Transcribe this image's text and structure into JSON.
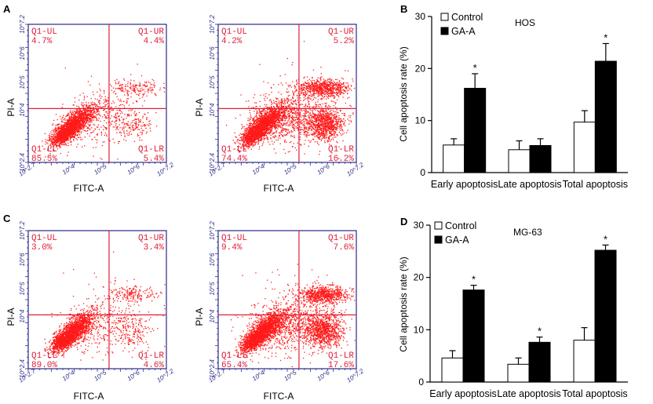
{
  "flow_panels": [
    {
      "letter": "A",
      "xlabel": "FITC-A",
      "ylabel": "PI-A",
      "plots": [
        {
          "quadrants": {
            "ul_name": "Q1-UL",
            "ul": "4.7%",
            "ur_name": "Q1-UR",
            "ur": "4.4%",
            "ll_name": "Q1-LL",
            "ll": "85.5%",
            "lr_name": "Q1-LR",
            "lr": "5.4%"
          },
          "density": "low"
        },
        {
          "quadrants": {
            "ul_name": "Q1-UL",
            "ul": "4.2%",
            "ur_name": "Q1-UR",
            "ur": "5.2%",
            "ll_name": "Q1-LL",
            "ll": "74.4%",
            "lr_name": "Q1-LR",
            "lr": "16.2%"
          },
          "density": "high"
        }
      ]
    },
    {
      "letter": "C",
      "xlabel": "FITC-A",
      "ylabel": "PI-A",
      "plots": [
        {
          "quadrants": {
            "ul_name": "Q1-UL",
            "ul": "3.0%",
            "ur_name": "Q1-UR",
            "ur": "3.4%",
            "ll_name": "Q1-LL",
            "ll": "89.0%",
            "lr_name": "Q1-LR",
            "lr": "4.6%"
          },
          "density": "low"
        },
        {
          "quadrants": {
            "ul_name": "Q1-UL",
            "ul": "9.4%",
            "ur_name": "Q1-UR",
            "ur": "7.6%",
            "ll_name": "Q1-LL",
            "ll": "65.4%",
            "lr_name": "Q1-LR",
            "lr": "17.6%"
          },
          "density": "high"
        }
      ]
    }
  ],
  "flow_ticks": {
    "x": [
      "10^2.7",
      "10^4",
      "10^5",
      "10^6",
      "10^7.2"
    ],
    "y": [
      "10^2.4",
      "10^4",
      "10^5",
      "10^6",
      "10^7.2"
    ]
  },
  "colors": {
    "dots": "#ff1a1a",
    "quad_lines": "#e0203a",
    "box": "#2a2a8a",
    "control": "#ffffff",
    "gaa": "#000000"
  },
  "chart_data": [
    {
      "letter": "B",
      "type": "bar",
      "cell_line": "HOS",
      "categories": [
        "Early apoptosis",
        "Late apoptosis",
        "Total apoptosis"
      ],
      "ylabel": "Cell apoptosis rate (%)",
      "ylim": [
        0,
        30
      ],
      "yticks": [
        "0",
        "10",
        "20",
        "30"
      ],
      "series": [
        {
          "name": "Control",
          "values": [
            5.3,
            4.4,
            9.7
          ],
          "errors": [
            1.2,
            1.7,
            2.2
          ]
        },
        {
          "name": "GA-A",
          "values": [
            16.2,
            5.2,
            21.4
          ],
          "errors": [
            2.8,
            1.3,
            3.4
          ]
        }
      ],
      "significance": [
        "*",
        "",
        "*"
      ]
    },
    {
      "letter": "D",
      "type": "bar",
      "cell_line": "MG-63",
      "categories": [
        "Early apoptosis",
        "Late apoptosis",
        "Total apoptosis"
      ],
      "ylabel": "Cell apoptosis rate (%)",
      "ylim": [
        0,
        30
      ],
      "yticks": [
        "0",
        "10",
        "20",
        "30"
      ],
      "series": [
        {
          "name": "Control",
          "values": [
            4.6,
            3.4,
            8.0
          ],
          "errors": [
            1.4,
            1.2,
            2.4
          ]
        },
        {
          "name": "GA-A",
          "values": [
            17.6,
            7.6,
            25.2
          ],
          "errors": [
            0.9,
            1.0,
            1.0
          ]
        }
      ],
      "significance": [
        "*",
        "*",
        "*"
      ]
    }
  ]
}
